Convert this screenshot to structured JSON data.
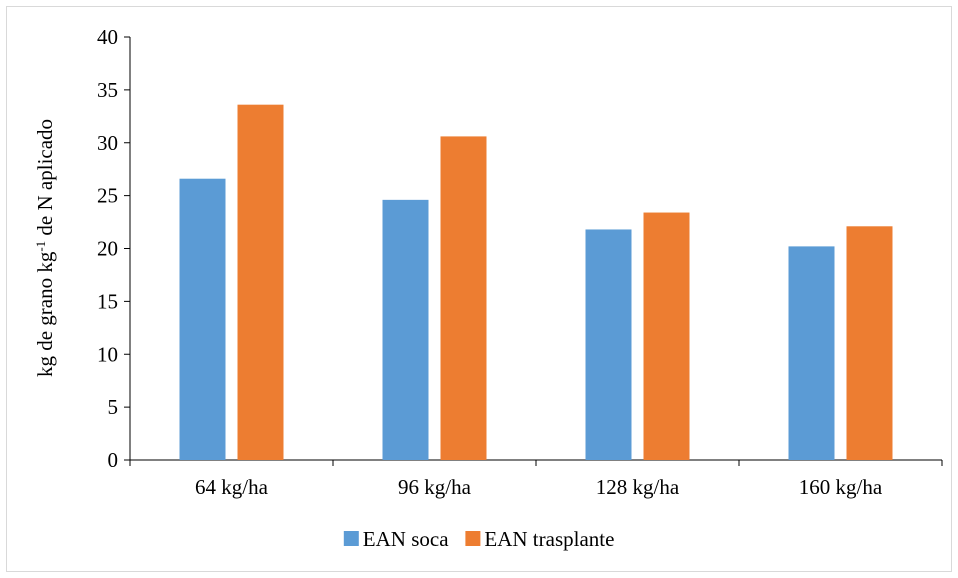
{
  "chart_data": {
    "type": "bar",
    "categories": [
      "64 kg/ha",
      "96 kg/ha",
      "128 kg/ha",
      "160 kg/ha"
    ],
    "series": [
      {
        "name": "EAN soca",
        "values": [
          26.6,
          24.6,
          21.8,
          20.2
        ],
        "color": "#5b9bd5"
      },
      {
        "name": "EAN trasplante",
        "values": [
          33.6,
          30.6,
          23.4,
          22.1
        ],
        "color": "#ed7d31"
      }
    ],
    "ylabel": {
      "pre": "kg de grano kg",
      "sup": "-1",
      "post": " de N aplicado"
    },
    "ylim": [
      0,
      40
    ],
    "yticks": [
      0,
      5,
      10,
      15,
      20,
      25,
      30,
      35,
      40
    ],
    "grid": false,
    "legend_position": "bottom"
  }
}
